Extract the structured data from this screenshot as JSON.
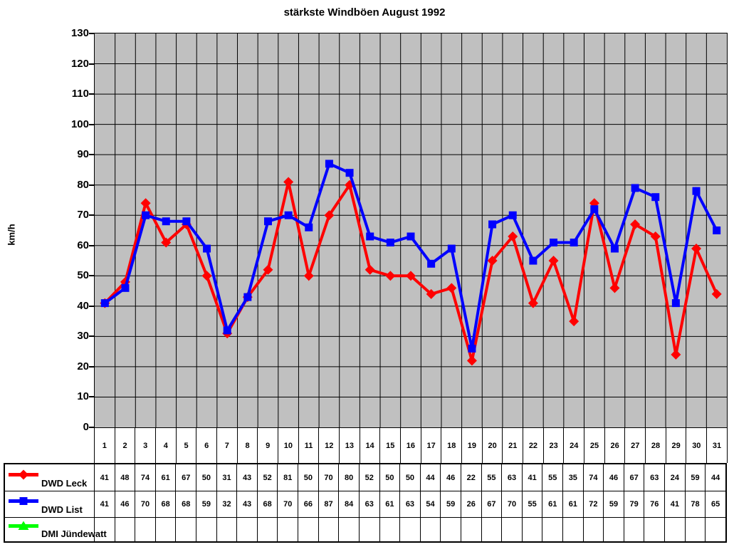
{
  "chart_data": {
    "type": "line",
    "title": "stärkste Windböen August 1992",
    "ylabel": "km/h",
    "ylim": [
      0,
      130
    ],
    "ytick_step": 10,
    "grid": true,
    "legend_position": "table-left",
    "plot_bg_color": "#C0C0C0",
    "grid_color": "#000000",
    "categories": [
      "1",
      "2",
      "3",
      "4",
      "5",
      "6",
      "7",
      "8",
      "9",
      "10",
      "11",
      "12",
      "13",
      "14",
      "15",
      "16",
      "17",
      "18",
      "19",
      "20",
      "21",
      "22",
      "23",
      "24",
      "25",
      "26",
      "27",
      "28",
      "29",
      "30",
      "31"
    ],
    "series": [
      {
        "name": "DWD Leck",
        "color": "#FF0000",
        "marker": "diamond",
        "values": [
          41,
          48,
          74,
          61,
          67,
          50,
          31,
          43,
          52,
          81,
          50,
          70,
          80,
          52,
          50,
          50,
          44,
          46,
          22,
          55,
          63,
          41,
          55,
          35,
          74,
          46,
          67,
          63,
          24,
          59,
          44
        ]
      },
      {
        "name": "DWD List",
        "color": "#0000FF",
        "marker": "square",
        "values": [
          41,
          46,
          70,
          68,
          68,
          59,
          32,
          43,
          68,
          70,
          66,
          87,
          84,
          63,
          61,
          63,
          54,
          59,
          26,
          67,
          70,
          55,
          61,
          61,
          72,
          59,
          79,
          76,
          41,
          78,
          65
        ]
      },
      {
        "name": "DMI Jündewatt",
        "color": "#00FF00",
        "marker": "triangle",
        "values": []
      }
    ]
  }
}
